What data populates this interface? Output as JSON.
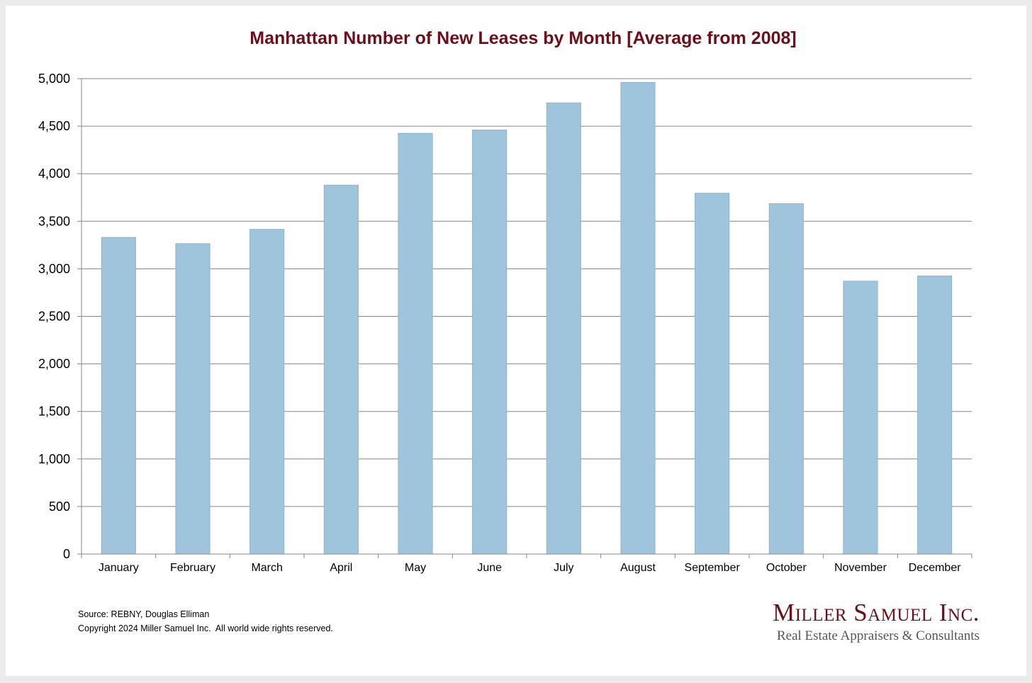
{
  "chart_data": {
    "type": "bar",
    "title": "Manhattan Number of New Leases by Month [Average from 2008]",
    "categories": [
      "January",
      "February",
      "March",
      "April",
      "May",
      "June",
      "July",
      "August",
      "September",
      "October",
      "November",
      "December"
    ],
    "values": [
      3330,
      3265,
      3415,
      3880,
      4425,
      4460,
      4745,
      4960,
      3795,
      3685,
      2870,
      2925
    ],
    "ylim": [
      0,
      5000
    ],
    "yticks": [
      0,
      500,
      1000,
      1500,
      2000,
      2500,
      3000,
      3500,
      4000,
      4500,
      5000
    ],
    "ytick_labels": [
      "0",
      "500",
      "1,000",
      "1,500",
      "2,000",
      "2,500",
      "3,000",
      "3,500",
      "4,000",
      "4,500",
      "5,000"
    ],
    "grid": true,
    "legend": "none",
    "bar_color": "#9fc5dc",
    "bar_edge_color": "#8fb3c9",
    "grid_color": "#888888"
  },
  "footer": {
    "source": "Source: REBNY, Douglas Elliman",
    "copyright": "Copyright 2024 Miller Samuel Inc.  All world wide rights reserved."
  },
  "logo": {
    "name": "Miller Samuel Inc.",
    "tagline": "Real Estate Appraisers & Consultants",
    "color": "#6b0f1a"
  }
}
